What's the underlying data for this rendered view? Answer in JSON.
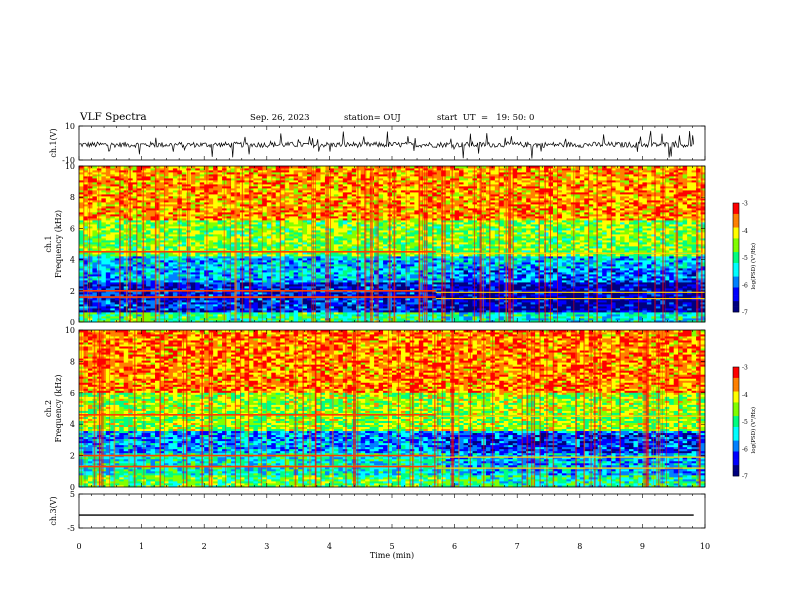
{
  "header": {
    "title": "VLF Spectra",
    "date": "Sep. 26, 2023",
    "station": "station= OUJ",
    "start_ut": "start  UT  =   19: 50: 0"
  },
  "chart_data": {
    "type": "heatmap",
    "x_axis": {
      "label": "Time  (min)",
      "range": [
        0,
        10
      ],
      "ticks": [
        "0",
        "1",
        "2",
        "3",
        "4",
        "5",
        "6",
        "7",
        "8",
        "9",
        "10"
      ]
    },
    "panels": [
      {
        "id": "ch1-waveform",
        "type": "line",
        "ylabel": "ch.1(V)",
        "ylim": [
          -10,
          10
        ],
        "tick_labels": [
          "10",
          "-10"
        ],
        "description_values": {
          "baseline_v": -1,
          "noise_amplitude_v": 2
        }
      },
      {
        "id": "ch1-spectrogram",
        "type": "heatmap",
        "ylabel": "ch.1\nFrequency  (kHz)",
        "ylim": [
          0,
          10
        ],
        "tick_labels": [
          "0",
          "2",
          "4",
          "6",
          "8",
          "10"
        ],
        "colorbar": {
          "label": "log(PSD) (V²/Hz)",
          "range": [
            -7,
            -3
          ],
          "ticks": [
            "-3",
            "-4",
            "-5",
            "-6",
            "-7"
          ]
        },
        "bands": [
          {
            "freq_khz": [
              0,
              0.6
            ],
            "level": -5.0
          },
          {
            "freq_khz": [
              0.6,
              2.6
            ],
            "level": -6.3
          },
          {
            "freq_khz": [
              2.6,
              4.2
            ],
            "level": -5.6
          },
          {
            "freq_khz": [
              4.2,
              6.5
            ],
            "level": -4.6
          },
          {
            "freq_khz": [
              6.5,
              10
            ],
            "level": -3.8
          }
        ],
        "tones_khz": [
          1.6,
          2.0,
          4.5
        ]
      },
      {
        "id": "ch2-spectrogram",
        "type": "heatmap",
        "ylabel": "ch.2\nFrequency  (kHz)",
        "ylim": [
          0,
          10
        ],
        "tick_labels": [
          "0",
          "2",
          "4",
          "6",
          "8",
          "10"
        ],
        "colorbar": {
          "label": "log(PSD) (V²/Hz)",
          "range": [
            -7,
            -3
          ],
          "ticks": [
            "-3",
            "-4",
            "-5",
            "-6",
            "-7"
          ]
        },
        "bands": [
          {
            "freq_khz": [
              0,
              0.8
            ],
            "level": -4.8
          },
          {
            "freq_khz": [
              0.8,
              2.2
            ],
            "level": -5.3
          },
          {
            "freq_khz": [
              2.2,
              3.6
            ],
            "level": -5.8
          },
          {
            "freq_khz": [
              3.6,
              6.0
            ],
            "level": -4.5
          },
          {
            "freq_khz": [
              6.0,
              10
            ],
            "level": -3.7
          }
        ],
        "tones_khz": [
          1.3,
          2.0,
          4.6
        ]
      },
      {
        "id": "ch3-waveform",
        "type": "line",
        "ylabel": "ch.3(V)",
        "ylim": [
          -5,
          5
        ],
        "tick_labels": [
          "5",
          "-5"
        ],
        "description_values": {
          "baseline_v": -1.2
        }
      }
    ]
  },
  "colors": {
    "palette": [
      "#000080",
      "#0000ff",
      "#0080ff",
      "#00ffff",
      "#00ff80",
      "#80ff00",
      "#ffff00",
      "#ff8000",
      "#ff0000"
    ],
    "axis": "#000000",
    "background": "#ffffff"
  }
}
